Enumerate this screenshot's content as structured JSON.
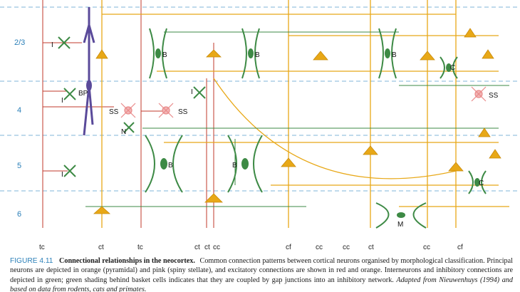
{
  "layers": [
    "2/3",
    "4",
    "5",
    "6"
  ],
  "bottom_labels": [
    "tc",
    "ct",
    "tc",
    "ct",
    "ct",
    "cc",
    "cf",
    "cc",
    "cc",
    "ct",
    "cc",
    "cf"
  ],
  "cell_labels": [
    "I",
    "B",
    "B",
    "B",
    "BP",
    "I",
    "SS",
    "SS",
    "N",
    "I",
    "B",
    "B",
    "C",
    "SS",
    "I",
    "C",
    "M"
  ],
  "caption": {
    "figure_number": "FIGURE 4.11",
    "title": "Connectional relationships in the neocortex.",
    "body": "Common connection patterns between cortical neurons organised by morphological classification. Principal neurons are depicted in orange (pyramidal) and pink (spiny stellate), and excitatory connections are shown in red and orange. Interneurons and inhibitory connections are depicted in green; green shading behind basket cells indicates that they are coupled by gap junctions into an inhibitory network.",
    "italic_tail": "Adapted from Nieuwenhuys (1994) and based on data from rodents, cats and primates."
  },
  "colors": {
    "pyramidal": "#e8a817",
    "spiny_stellate": "#e98a8a",
    "interneuron": "#3d8a45",
    "excitatory_axon": "#c0392b",
    "bipolar": "#5a4a9a",
    "layer_divider": "#7fb4d8",
    "layer_label": "#2a7fb8"
  }
}
